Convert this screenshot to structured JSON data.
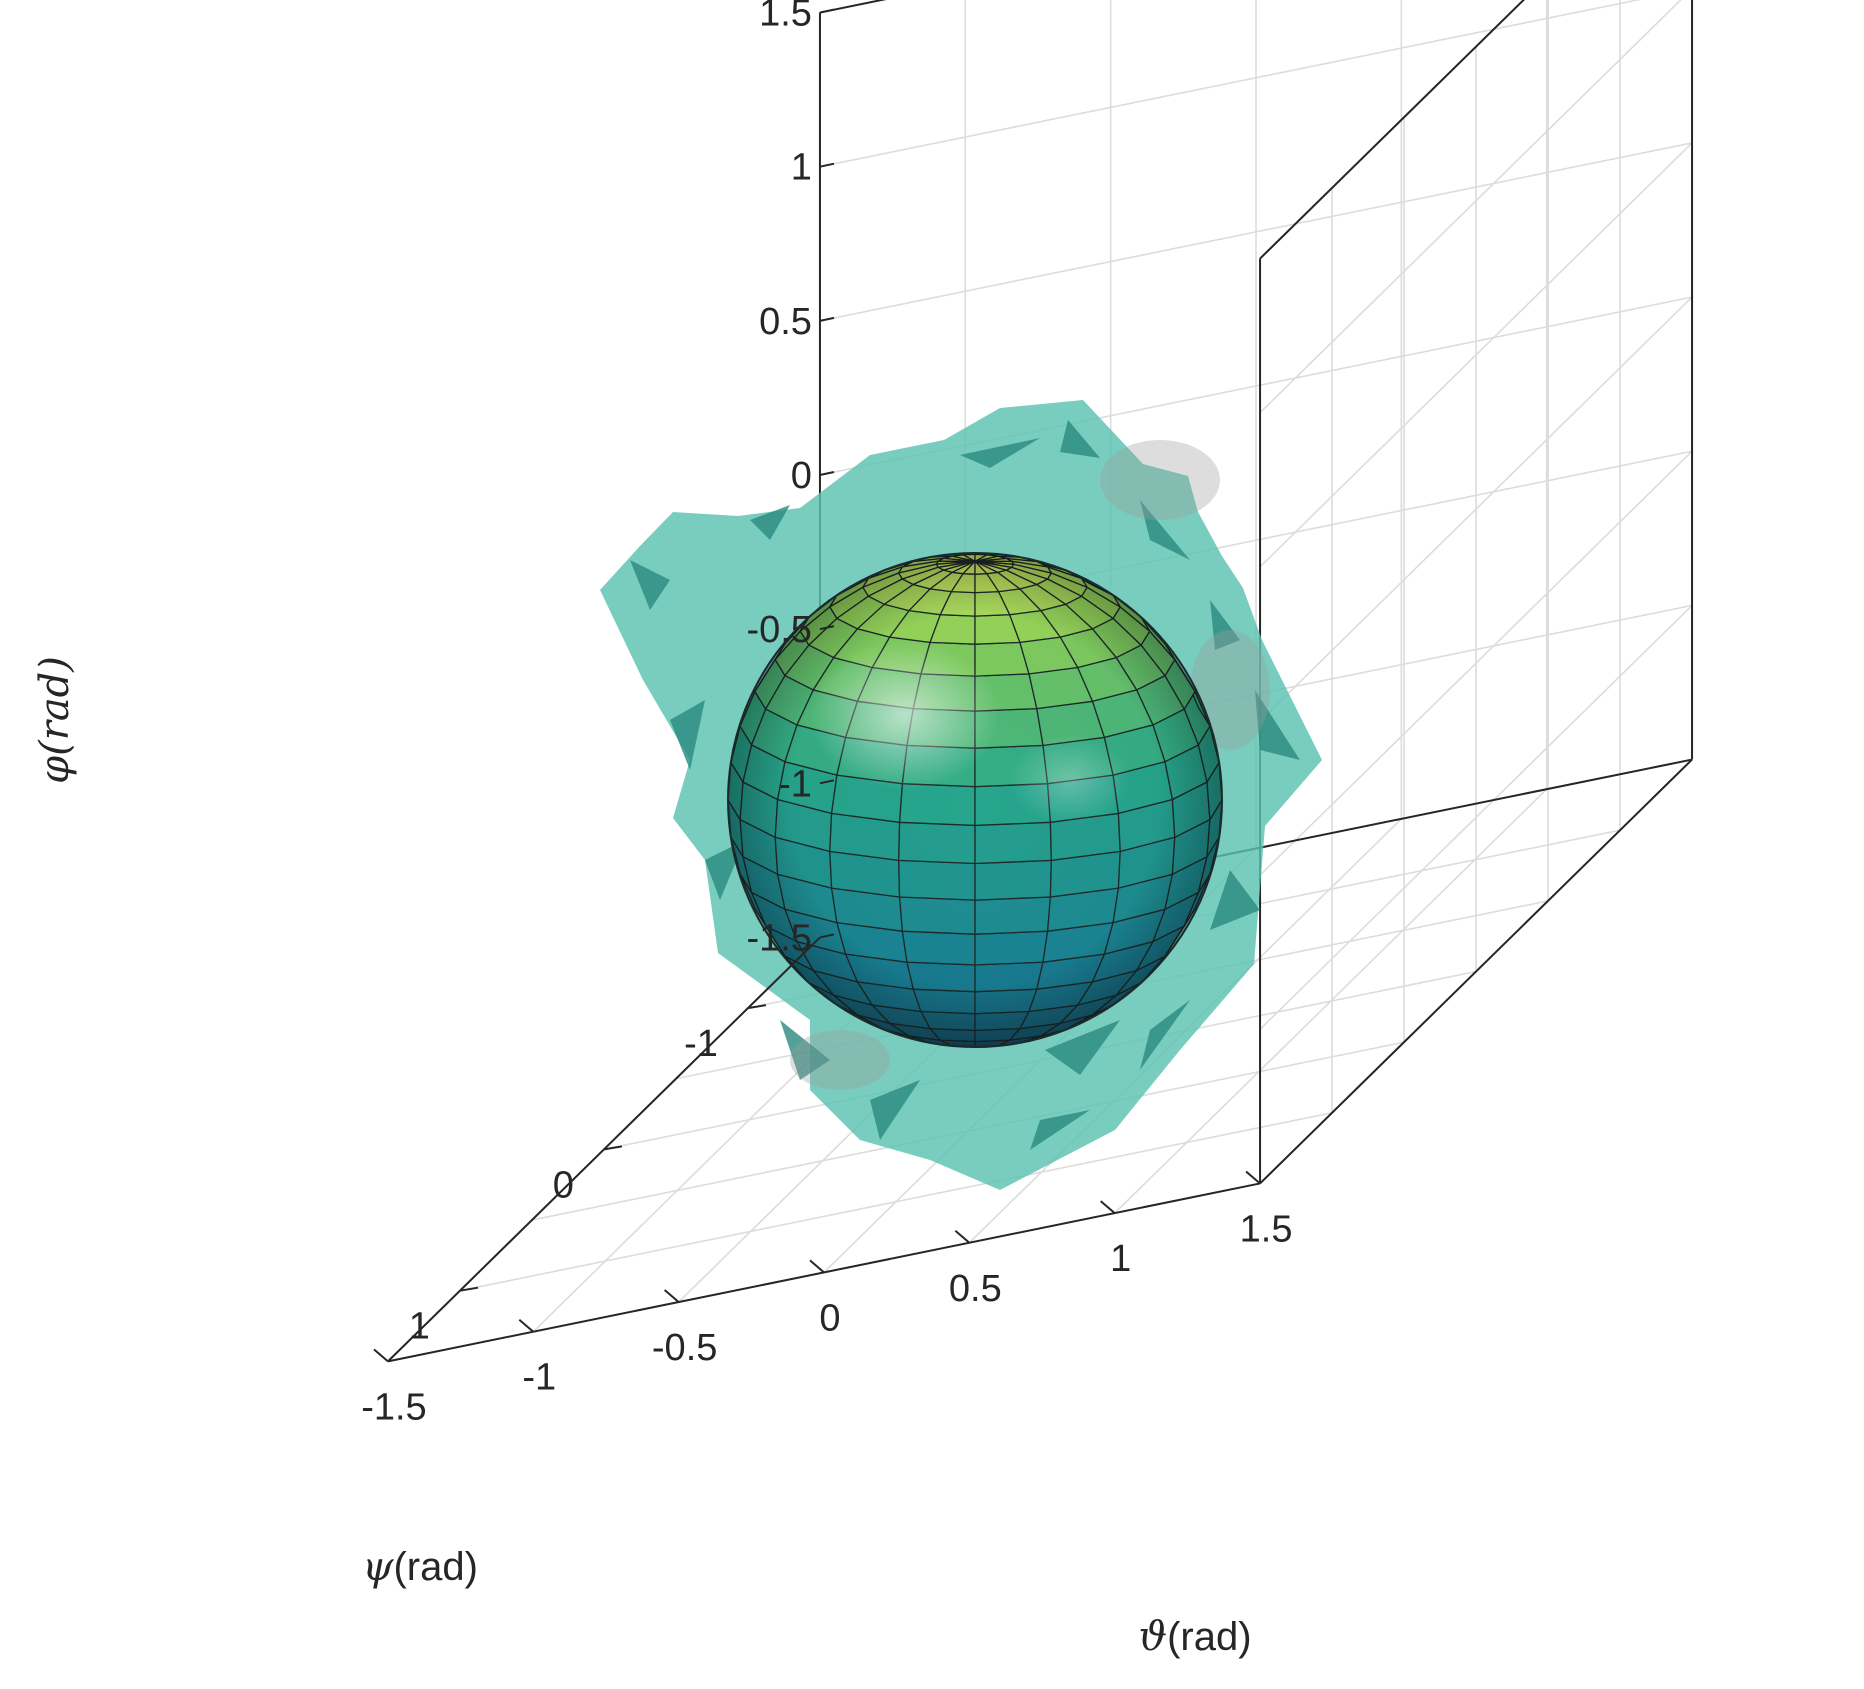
{
  "chart_data": {
    "type": "3d-surface",
    "title": "",
    "axes": {
      "x": {
        "label_symbol": "ϑ",
        "label_unit": "(rad)",
        "range": [
          -1.5,
          1.5
        ],
        "ticks": [
          -1.5,
          -1,
          -0.5,
          0,
          0.5,
          1,
          1.5
        ],
        "tick_labels": [
          "-1.5",
          "-1",
          "-0.5",
          "0",
          "0.5",
          "1",
          "1.5"
        ]
      },
      "y": {
        "label_symbol": "ψ",
        "label_unit": "(rad)",
        "range": [
          -1.5,
          1.5
        ],
        "ticks": [
          -1,
          0,
          1
        ],
        "tick_labels": [
          "-1",
          "0",
          "1"
        ]
      },
      "z": {
        "label_symbol": "φ(rad)",
        "range": [
          -1.5,
          1.5
        ],
        "ticks": [
          -1.5,
          -1,
          -0.5,
          0,
          0.5,
          1,
          1.5
        ],
        "tick_labels": [
          "-1.5",
          "-1",
          "-0.5",
          "0",
          "0.5",
          "1",
          "1.5"
        ]
      }
    },
    "grid": true,
    "box": true,
    "series": [
      {
        "kind": "sphere",
        "center": [
          0,
          0,
          0
        ],
        "radius": 0.7,
        "colormap": "parula-like",
        "color_top": "#d8f26a",
        "color_bottom": "#123f5c",
        "edge_color": "#1e2b2b"
      },
      {
        "kind": "isosurface",
        "center": [
          0,
          0,
          0
        ],
        "approx_radius": 1.0,
        "color": "#5cc2b0",
        "opacity": 0.75
      }
    ]
  },
  "colors": {
    "axis": "#262626",
    "grid": "#dcdcdc",
    "blob": "#5cc2b0",
    "blob_dark": "#2b8a7f"
  }
}
